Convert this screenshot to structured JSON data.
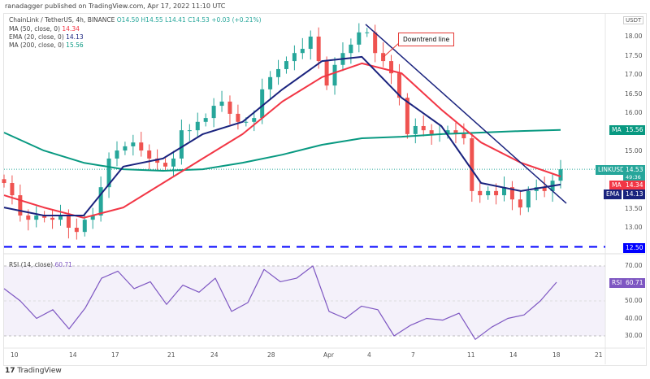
{
  "publisher": "ranadagger published on TradingView.com, Apr 17, 2022 11:10 UTC",
  "legend": {
    "symbol": "ChainLink / TetherUS, 4h, BINANCE",
    "open": "O14.50",
    "high": "H14.55",
    "low": "L14.41",
    "close": "C14.53",
    "change": "+0.03 (+0.21%)",
    "ma50_label": "MA (50, close, 0)",
    "ma50_value": "14.34",
    "ema20_label": "EMA (20, close, 0)",
    "ema20_value": "14.13",
    "ma200_label": "MA (200, close, 0)",
    "ma200_value": "15.56",
    "rsi_label": "RSI (14, close)",
    "rsi_value": "60.71"
  },
  "axis": {
    "currency": "USDT",
    "tags": {
      "ma200": "MA",
      "ma50": "MA",
      "ema": "EMA",
      "symbol": "LINKUSDT",
      "countdown": "49:36",
      "rsi": "RSI"
    },
    "last": "14.53",
    "ma200": "15.56",
    "ma50": "14.34",
    "ema": "14.13",
    "support": "12.50",
    "rsi_last": "60.71"
  },
  "annotation": "Downtrend line",
  "footer": "TradingView",
  "colors": {
    "up": "#26a69a",
    "down": "#ef5350",
    "ma50": "#f23645",
    "ema20": "#1a237e",
    "ma200": "#089981",
    "support": "#0000ff",
    "rsi": "#7e57c2",
    "trend": "#1a237e"
  },
  "chart_data": {
    "type": "candlestick",
    "price_ticks": [
      "18.00",
      "17.50",
      "17.00",
      "16.50",
      "16.00",
      "15.00",
      "13.50",
      "13.00"
    ],
    "price_range": [
      12.3,
      18.3
    ],
    "rsi_ticks": [
      "70.00",
      "50.00",
      "40.00",
      "30.00"
    ],
    "rsi_range": [
      20,
      75
    ],
    "time_ticks": [
      "10",
      "14",
      "17",
      "21",
      "24",
      "28",
      "Apr",
      "4",
      "7",
      "11",
      "14",
      "18",
      "21"
    ],
    "closes": [
      14.17,
      13.85,
      13.32,
      13.21,
      13.32,
      13.26,
      13.21,
      13.32,
      13.0,
      12.89,
      13.21,
      13.32,
      14.06,
      14.81,
      15.02,
      15.13,
      15.23,
      15.02,
      14.81,
      14.7,
      14.6,
      14.81,
      15.55,
      15.55,
      15.77,
      15.87,
      16.19,
      16.3,
      15.98,
      15.77,
      15.77,
      15.87,
      16.62,
      16.94,
      17.15,
      17.36,
      17.57,
      17.68,
      18.0,
      17.36,
      16.72,
      17.26,
      17.57,
      17.79,
      18.11,
      18.11,
      17.57,
      17.36,
      17.04,
      16.4,
      15.45,
      15.66,
      15.55,
      15.45,
      15.45,
      15.55,
      15.45,
      15.34,
      13.96,
      13.85,
      13.96,
      13.85,
      14.06,
      13.74,
      13.53,
      13.96,
      14.06,
      13.96,
      14.23,
      14.53
    ],
    "ma200": [
      15.49,
      15.02,
      14.7,
      14.53,
      14.49,
      14.53,
      14.7,
      14.91,
      15.17,
      15.34,
      15.38,
      15.45,
      15.49,
      15.53,
      15.56
    ],
    "ma50": [
      13.85,
      13.53,
      13.26,
      13.53,
      14.17,
      14.81,
      15.45,
      16.3,
      16.94,
      17.3,
      17.04,
      16.09,
      15.23,
      14.7,
      14.34
    ],
    "ema20": [
      13.53,
      13.32,
      13.32,
      14.6,
      14.81,
      15.45,
      15.77,
      16.62,
      17.36,
      17.47,
      16.4,
      15.66,
      14.17,
      13.96,
      14.13
    ],
    "rsi": [
      57,
      50,
      40,
      45,
      34,
      46,
      63,
      67,
      57,
      61,
      48,
      59,
      55,
      63,
      44,
      49,
      68,
      61,
      63,
      70,
      44,
      40,
      47,
      45,
      30,
      36,
      40,
      39,
      43,
      28,
      35,
      40,
      42,
      50,
      60.71
    ],
    "support_level": 12.5,
    "rsi_bands": [
      70,
      30
    ],
    "trendline": {
      "from": 18.32,
      "to": 13.64
    }
  }
}
